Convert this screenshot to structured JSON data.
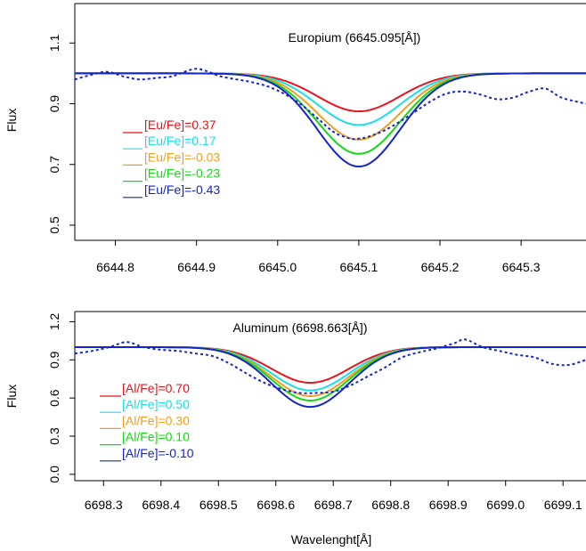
{
  "figure": {
    "xlabel": "Wavelenght[Å]"
  },
  "chart_data": [
    {
      "type": "line",
      "ylabel": "Flux",
      "annotation": "Europium (6645.095[Å])",
      "xlim": [
        6644.75,
        6645.38
      ],
      "ylim": [
        0.45,
        1.23
      ],
      "xticks": [
        6644.8,
        6644.9,
        6645.0,
        6645.1,
        6645.2,
        6645.3
      ],
      "xtick_labels": [
        "6644.8",
        "6644.9",
        "6645.0",
        "6645.1",
        "6645.2",
        "6645.3"
      ],
      "yticks": [
        0.5,
        0.7,
        0.9,
        1.1
      ],
      "ytick_labels": [
        "0.5",
        "0.7",
        "0.9",
        "1.1"
      ],
      "line_center": 6645.1,
      "line_width": 0.075,
      "continuum": 1.0,
      "series": [
        {
          "name": "[Eu/Fe]=0.37",
          "color": "#e8141c",
          "min": 0.875
        },
        {
          "name": "[Eu/Fe]=0.17",
          "color": "#18e0e8",
          "min": 0.83
        },
        {
          "name": "[Eu/Fe]=-0.03",
          "color": "#f0a020",
          "min": 0.782
        },
        {
          "name": "[Eu/Fe]=-0.23",
          "color": "#14d814",
          "min": 0.735
        },
        {
          "name": "[Eu/Fe]=-0.43",
          "color": "#1424c8",
          "min": 0.693
        }
      ],
      "observed": {
        "color": "#1424c8",
        "x": [
          6644.75,
          6644.77,
          6644.79,
          6644.81,
          6644.83,
          6644.85,
          6644.87,
          6644.885,
          6644.9,
          6644.915,
          6644.93,
          6644.95,
          6644.97,
          6644.99,
          6645.01,
          6645.03,
          6645.05,
          6645.07,
          6645.09,
          6645.1,
          6645.11,
          6645.13,
          6645.15,
          6645.17,
          6645.19,
          6645.21,
          6645.23,
          6645.25,
          6645.27,
          6645.29,
          6645.31,
          6645.33,
          6645.35,
          6645.38
        ],
        "y": [
          0.98,
          0.995,
          1.005,
          0.99,
          0.98,
          0.985,
          0.99,
          1.005,
          1.015,
          1.005,
          0.99,
          0.98,
          0.97,
          0.955,
          0.93,
          0.895,
          0.85,
          0.805,
          0.785,
          0.785,
          0.79,
          0.81,
          0.84,
          0.875,
          0.91,
          0.935,
          0.94,
          0.93,
          0.915,
          0.92,
          0.94,
          0.95,
          0.92,
          0.9
        ]
      }
    },
    {
      "type": "line",
      "ylabel": "Flux",
      "annotation": "Aluminum (6698.663[Å])",
      "xlim": [
        6698.25,
        6699.14
      ],
      "ylim": [
        -0.05,
        1.28
      ],
      "xticks": [
        6698.3,
        6698.4,
        6698.5,
        6698.6,
        6698.7,
        6698.8,
        6698.9,
        6699.0,
        6699.1
      ],
      "xtick_labels": [
        "6698.3",
        "6698.4",
        "6698.5",
        "6698.6",
        "6698.7",
        "6698.8",
        "6698.9",
        "6699.0",
        "6699.1"
      ],
      "yticks": [
        0.0,
        0.3,
        0.6,
        0.9,
        1.2
      ],
      "ytick_labels": [
        "0.0",
        "0.3",
        "0.6",
        "0.9",
        "1.2"
      ],
      "line_center": 6698.66,
      "line_width": 0.1,
      "continuum": 1.0,
      "series": [
        {
          "name": "[Al/Fe]=0.70",
          "color": "#e8141c",
          "min": 0.72
        },
        {
          "name": "[Al/Fe]=0.50",
          "color": "#18e0e8",
          "min": 0.66
        },
        {
          "name": "[Al/Fe]=0.30",
          "color": "#f0a020",
          "min": 0.615
        },
        {
          "name": "[Al/Fe]=0.10",
          "color": "#14d814",
          "min": 0.58
        },
        {
          "name": "[Al/Fe]=-0.10",
          "color": "#1424c8",
          "min": 0.53
        }
      ],
      "observed": {
        "color": "#1424c8",
        "x": [
          6698.25,
          6698.28,
          6698.31,
          6698.34,
          6698.37,
          6698.4,
          6698.43,
          6698.46,
          6698.49,
          6698.52,
          6698.55,
          6698.58,
          6698.61,
          6698.64,
          6698.67,
          6698.7,
          6698.73,
          6698.76,
          6698.79,
          6698.82,
          6698.85,
          6698.88,
          6698.91,
          6698.93,
          6698.96,
          6698.99,
          6699.02,
          6699.05,
          6699.08,
          6699.11,
          6699.14
        ],
        "y": [
          0.95,
          0.97,
          1.0,
          1.04,
          1.0,
          0.98,
          0.97,
          0.95,
          0.93,
          0.87,
          0.79,
          0.72,
          0.67,
          0.64,
          0.64,
          0.65,
          0.7,
          0.77,
          0.84,
          0.92,
          0.96,
          0.99,
          1.03,
          1.06,
          1.0,
          0.97,
          0.94,
          0.92,
          0.87,
          0.86,
          0.9
        ]
      }
    }
  ]
}
